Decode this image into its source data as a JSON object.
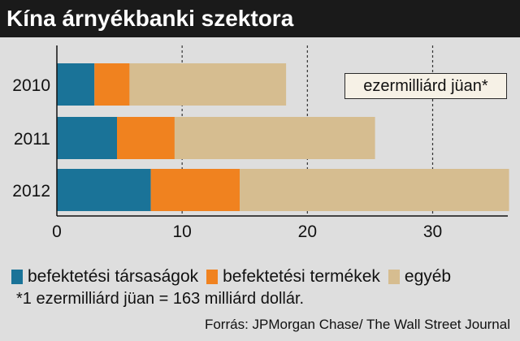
{
  "header": {
    "title": "Kína árnyékbanki szektora"
  },
  "unit_label": "ezermilliárd jüan*",
  "note": "*1 ezermilliárd jüan = 163 milliárd dollár.",
  "source": "Forrás: JPMorgan Chase/ The Wall Street Journal",
  "colors": {
    "series1": "#1a7398",
    "series2": "#f0821f",
    "series3": "#d6bd90"
  },
  "chart_data": {
    "type": "bar",
    "orientation": "horizontal",
    "stacked": true,
    "categories": [
      "2010",
      "2011",
      "2012"
    ],
    "series": [
      {
        "name": "befektetési társaságok",
        "values": [
          3.0,
          4.8,
          7.5
        ]
      },
      {
        "name": "befektetési termékek",
        "values": [
          2.8,
          4.6,
          7.1
        ]
      },
      {
        "name": "egyéb",
        "values": [
          12.5,
          16.0,
          21.5
        ]
      }
    ],
    "xticks": [
      "0",
      "10",
      "20",
      "30"
    ],
    "xlim": [
      0,
      36
    ],
    "grid": "vertical dashed",
    "legend_position": "bottom"
  }
}
